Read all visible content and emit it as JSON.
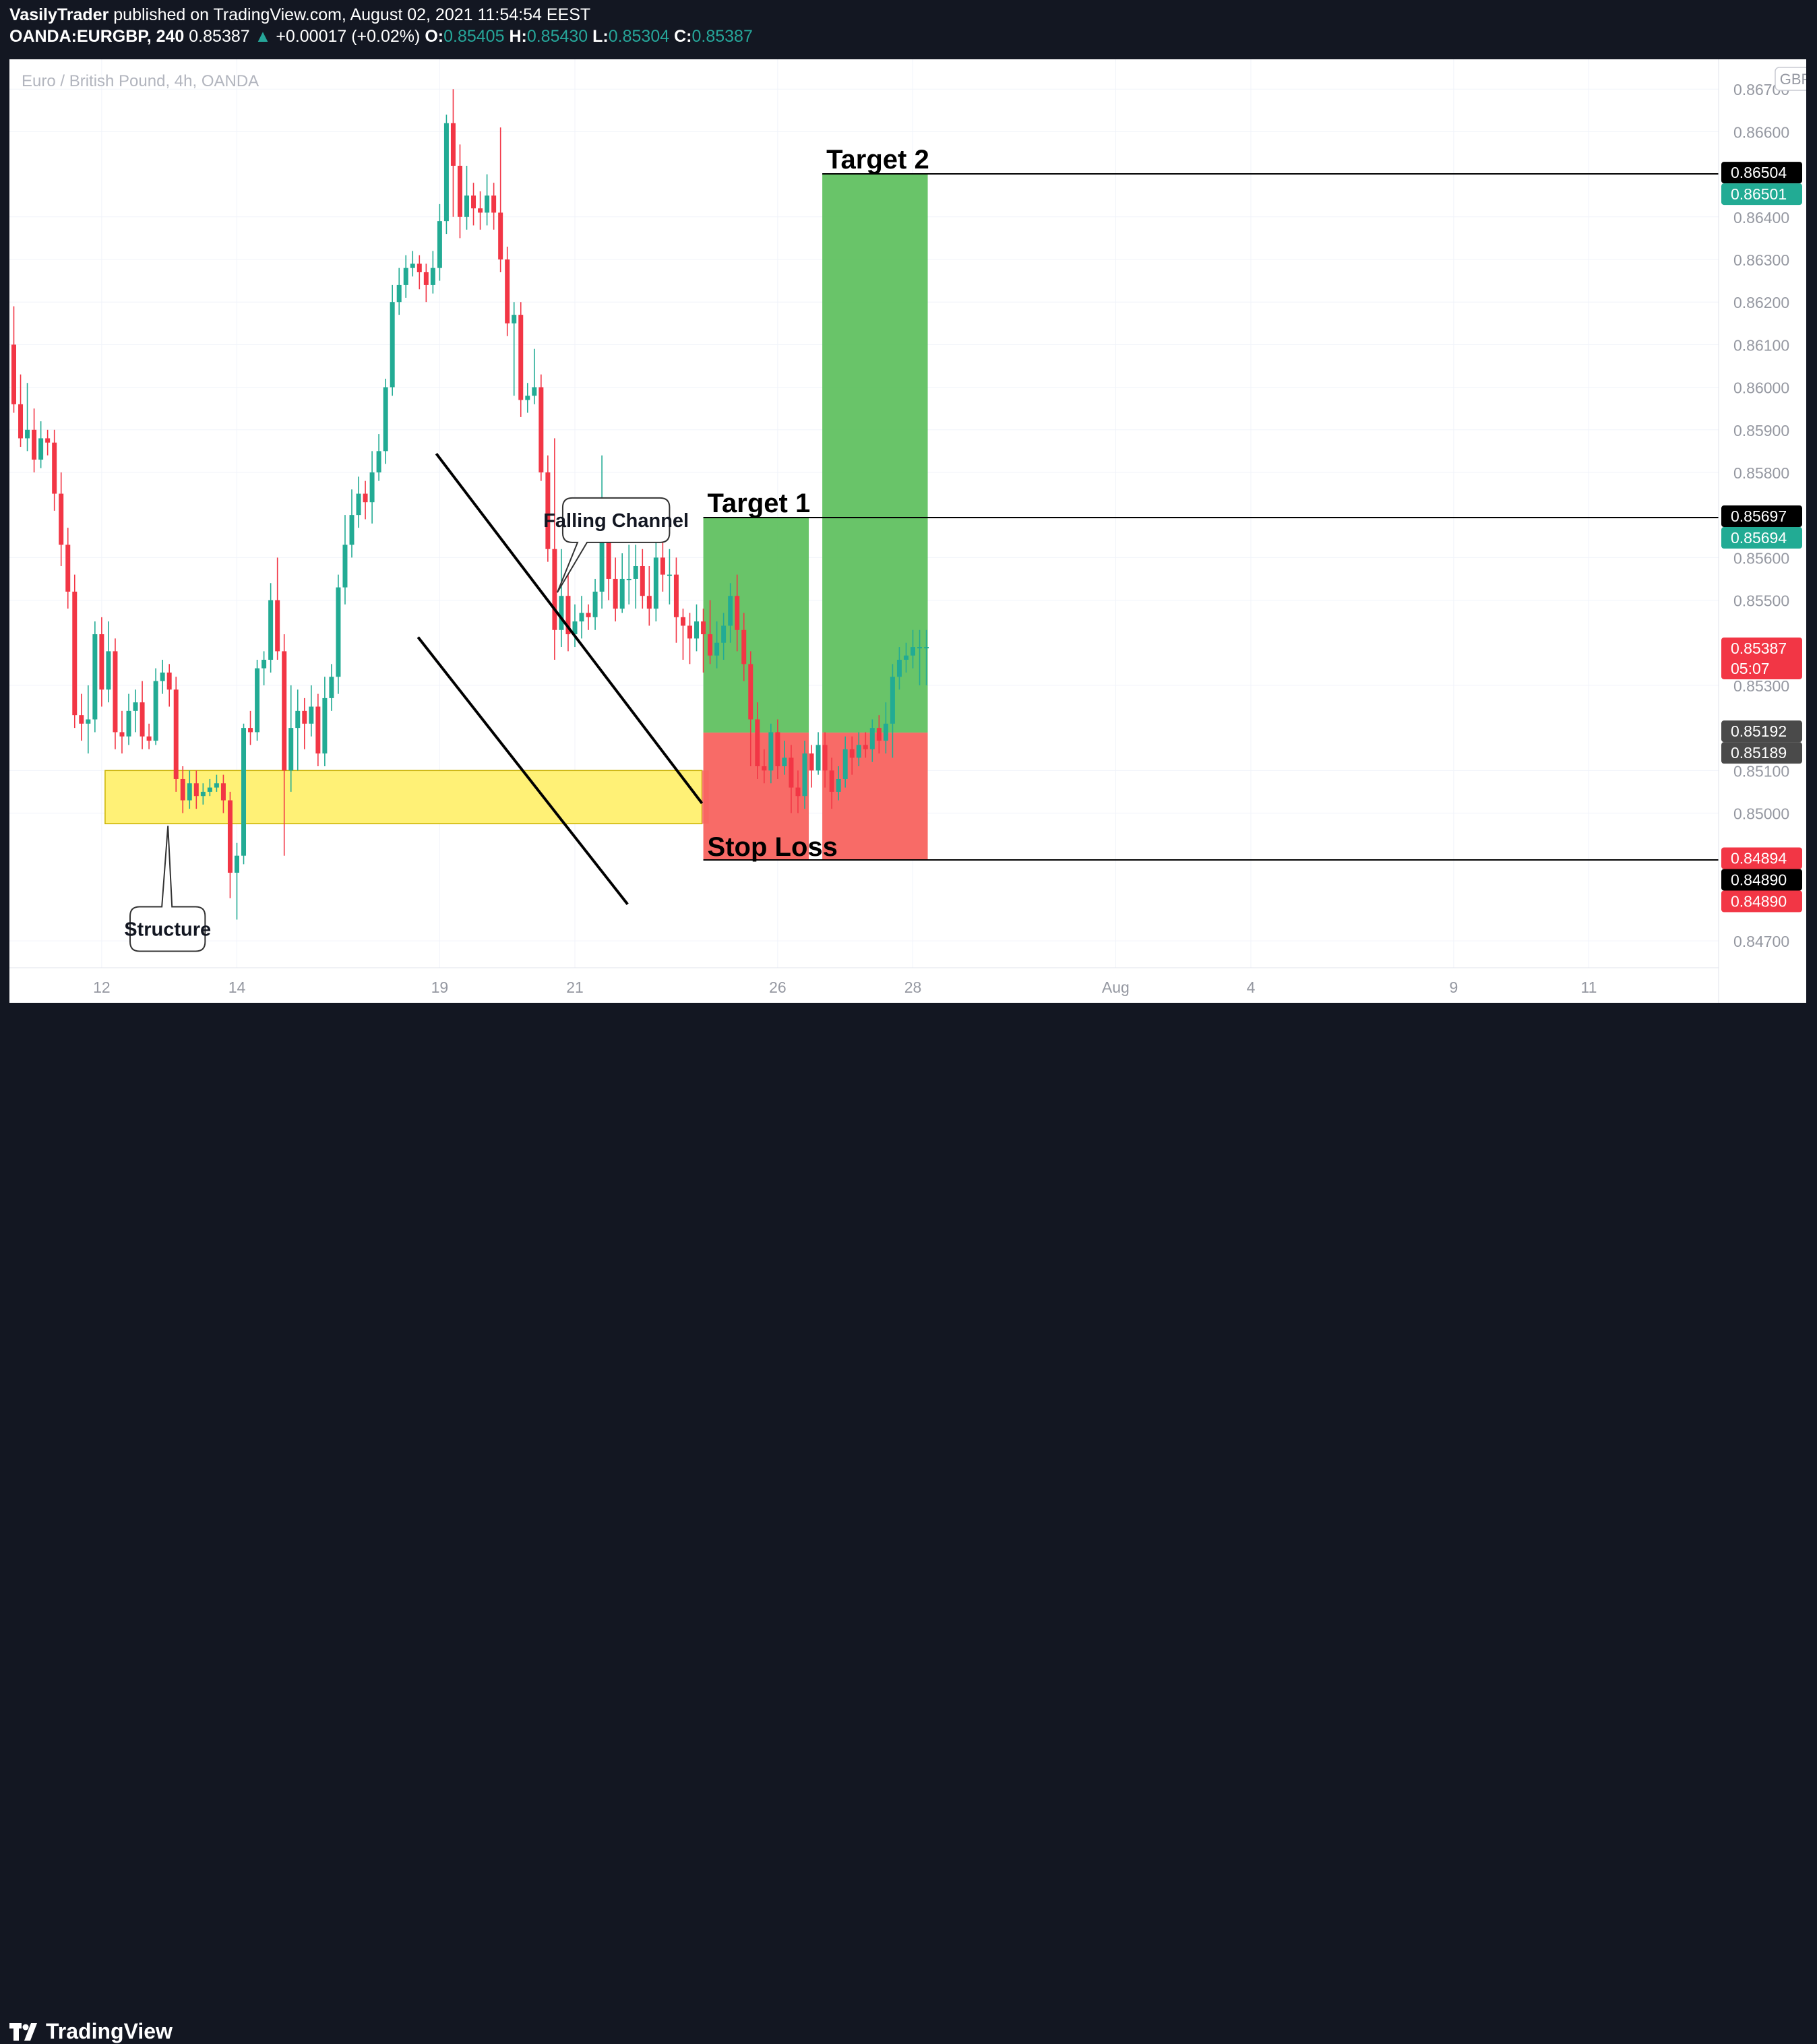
{
  "header": {
    "author": "VasilyTrader",
    "published_text": "published on TradingView.com, August 02, 2021 11:54:54 EEST",
    "symbol": "OANDA:EURGBP, 240",
    "last": "0.85387",
    "change_arrow": "▲",
    "change": "+0.00017 (+0.02%)",
    "o_label": "O:",
    "o_value": "0.85405",
    "h_label": "H:",
    "h_value": "0.85430",
    "l_label": "L:",
    "l_value": "0.85304",
    "c_label": "C:",
    "c_value": "0.85387"
  },
  "chart_title": "Euro / British Pound, 4h, OANDA",
  "currency_badge": "GBP",
  "footer": {
    "brand": "TradingView",
    "logo_icon": "tradingview-logo-icon"
  },
  "colors": {
    "up": "#22ab94",
    "down": "#f23645",
    "target_zone": "#5cbf5c",
    "stop_zone": "#f8635f",
    "structure_zone": "#fff176",
    "background": "#131722",
    "chart_bg": "#ffffff"
  },
  "annotations": {
    "structure": "Structure",
    "falling_channel": "Falling Channel",
    "target1": "Target 1",
    "target2": "Target 2",
    "stop_loss": "Stop Loss"
  },
  "price_tags": [
    {
      "text": "0.86504",
      "price": 0.86504,
      "color": "#000000"
    },
    {
      "text": "0.86501",
      "price": 0.86501,
      "color": "#22ab94"
    },
    {
      "text": "0.85697",
      "price": 0.85697,
      "color": "#000000"
    },
    {
      "text": "0.85694",
      "price": 0.85694,
      "color": "#22ab94"
    },
    {
      "text": "0.85387",
      "text2": "05:07",
      "price": 0.85387,
      "color": "#f23645"
    },
    {
      "text": "0.85192",
      "price": 0.85192,
      "color": "#4a4a4a"
    },
    {
      "text": "0.85189",
      "price": 0.85189,
      "color": "#4a4a4a"
    },
    {
      "text": "0.84894",
      "price": 0.84894,
      "color": "#f23645"
    },
    {
      "text": "0.84890",
      "price": 0.8489,
      "color": "#000000"
    },
    {
      "text": "0.84890",
      "price": 0.8489,
      "color": "#f23645"
    }
  ],
  "chart_data": {
    "type": "candlestick",
    "title": "Euro / British Pound, 4h, OANDA",
    "y_range": [
      0.8464,
      0.8677
    ],
    "y_ticks": [
      "0.86700",
      "0.86600",
      "0.86400",
      "0.86300",
      "0.86200",
      "0.86100",
      "0.86000",
      "0.85900",
      "0.85800",
      "0.85600",
      "0.85500",
      "0.85300",
      "0.85100",
      "0.85000",
      "0.84700"
    ],
    "x_ticks": [
      {
        "label": "12",
        "bar": 13
      },
      {
        "label": "14",
        "bar": 33
      },
      {
        "label": "19",
        "bar": 63
      },
      {
        "label": "21",
        "bar": 83
      },
      {
        "label": "26",
        "bar": 113
      },
      {
        "label": "28",
        "bar": 133
      },
      {
        "label": "Aug",
        "bar": 163
      },
      {
        "label": "4",
        "bar": 183
      },
      {
        "label": "9",
        "bar": 213
      },
      {
        "label": "11",
        "bar": 233
      }
    ],
    "candles": [
      [
        0.861,
        0.8596,
        0.8619,
        0.8594
      ],
      [
        0.8596,
        0.8588,
        0.8603,
        0.8586
      ],
      [
        0.8588,
        0.859,
        0.8601,
        0.8585
      ],
      [
        0.859,
        0.8583,
        0.8595,
        0.858
      ],
      [
        0.8583,
        0.8588,
        0.8592,
        0.8581
      ],
      [
        0.8588,
        0.8587,
        0.859,
        0.8584
      ],
      [
        0.8587,
        0.8575,
        0.859,
        0.8571
      ],
      [
        0.8575,
        0.8563,
        0.858,
        0.8558
      ],
      [
        0.8563,
        0.8552,
        0.8567,
        0.8548
      ],
      [
        0.8552,
        0.8523,
        0.8556,
        0.852
      ],
      [
        0.8523,
        0.8521,
        0.8528,
        0.8517
      ],
      [
        0.8521,
        0.8522,
        0.853,
        0.8514
      ],
      [
        0.8522,
        0.8542,
        0.8545,
        0.8519
      ],
      [
        0.8542,
        0.8529,
        0.8546,
        0.8525
      ],
      [
        0.8529,
        0.8538,
        0.8545,
        0.8526
      ],
      [
        0.8538,
        0.8519,
        0.8541,
        0.8515
      ],
      [
        0.8519,
        0.8518,
        0.8524,
        0.8514
      ],
      [
        0.8518,
        0.8524,
        0.8528,
        0.8516
      ],
      [
        0.8524,
        0.8526,
        0.8529,
        0.8519
      ],
      [
        0.8526,
        0.8518,
        0.8531,
        0.8515
      ],
      [
        0.8518,
        0.8517,
        0.8521,
        0.8515
      ],
      [
        0.8517,
        0.8531,
        0.8534,
        0.8516
      ],
      [
        0.8531,
        0.8533,
        0.8536,
        0.8528
      ],
      [
        0.8533,
        0.8529,
        0.8535,
        0.8525
      ],
      [
        0.8529,
        0.8508,
        0.8532,
        0.8505
      ],
      [
        0.8508,
        0.8503,
        0.8511,
        0.85
      ],
      [
        0.8503,
        0.8507,
        0.851,
        0.8501
      ],
      [
        0.8507,
        0.8504,
        0.851,
        0.8501
      ],
      [
        0.8504,
        0.8505,
        0.8507,
        0.8502
      ],
      [
        0.8505,
        0.8506,
        0.8508,
        0.8504
      ],
      [
        0.8506,
        0.8507,
        0.8509,
        0.8505
      ],
      [
        0.8507,
        0.8503,
        0.8509,
        0.85
      ],
      [
        0.8503,
        0.8486,
        0.8505,
        0.848
      ],
      [
        0.8486,
        0.849,
        0.8493,
        0.8475
      ],
      [
        0.849,
        0.852,
        0.8521,
        0.8488
      ],
      [
        0.852,
        0.8519,
        0.8524,
        0.8516
      ],
      [
        0.8519,
        0.8534,
        0.8536,
        0.8517
      ],
      [
        0.8534,
        0.8536,
        0.8538,
        0.853
      ],
      [
        0.8536,
        0.855,
        0.8554,
        0.8533
      ],
      [
        0.855,
        0.8538,
        0.856,
        0.8536
      ],
      [
        0.8538,
        0.851,
        0.8542,
        0.849
      ],
      [
        0.851,
        0.852,
        0.853,
        0.8505
      ],
      [
        0.852,
        0.8524,
        0.8529,
        0.851
      ],
      [
        0.8524,
        0.8521,
        0.8527,
        0.8515
      ],
      [
        0.8521,
        0.8525,
        0.853,
        0.8518
      ],
      [
        0.8525,
        0.8514,
        0.8528,
        0.8511
      ],
      [
        0.8514,
        0.8527,
        0.8532,
        0.8511
      ],
      [
        0.8527,
        0.8532,
        0.8535,
        0.8524
      ],
      [
        0.8532,
        0.8553,
        0.8556,
        0.8528
      ],
      [
        0.8553,
        0.8563,
        0.857,
        0.8549
      ],
      [
        0.8563,
        0.857,
        0.8576,
        0.856
      ],
      [
        0.857,
        0.8575,
        0.8579,
        0.8567
      ],
      [
        0.8575,
        0.8573,
        0.8578,
        0.8569
      ],
      [
        0.8573,
        0.858,
        0.8585,
        0.8568
      ],
      [
        0.858,
        0.8585,
        0.8589,
        0.8578
      ],
      [
        0.8585,
        0.86,
        0.8602,
        0.8582
      ],
      [
        0.86,
        0.862,
        0.8624,
        0.8598
      ],
      [
        0.862,
        0.8624,
        0.8628,
        0.8617
      ],
      [
        0.8624,
        0.8628,
        0.8631,
        0.8621
      ],
      [
        0.8628,
        0.8629,
        0.8632,
        0.8626
      ],
      [
        0.8629,
        0.8627,
        0.8631,
        0.8623
      ],
      [
        0.8627,
        0.8624,
        0.8629,
        0.862
      ],
      [
        0.8624,
        0.8628,
        0.8632,
        0.8622
      ],
      [
        0.8628,
        0.8639,
        0.8643,
        0.8625
      ],
      [
        0.8639,
        0.8662,
        0.8664,
        0.8636
      ],
      [
        0.8662,
        0.8652,
        0.867,
        0.864
      ],
      [
        0.8652,
        0.864,
        0.8657,
        0.8635
      ],
      [
        0.864,
        0.8645,
        0.8652,
        0.8637
      ],
      [
        0.8645,
        0.8642,
        0.8648,
        0.8638
      ],
      [
        0.8642,
        0.8641,
        0.8646,
        0.8637
      ],
      [
        0.8641,
        0.8645,
        0.865,
        0.8638
      ],
      [
        0.8645,
        0.8641,
        0.8648,
        0.8637
      ],
      [
        0.8641,
        0.863,
        0.8661,
        0.8627
      ],
      [
        0.863,
        0.8615,
        0.8633,
        0.8612
      ],
      [
        0.8615,
        0.8617,
        0.862,
        0.8598
      ],
      [
        0.8617,
        0.8597,
        0.862,
        0.8593
      ],
      [
        0.8597,
        0.8598,
        0.8601,
        0.8594
      ],
      [
        0.8598,
        0.86,
        0.8609,
        0.8596
      ],
      [
        0.86,
        0.858,
        0.8603,
        0.8578
      ],
      [
        0.858,
        0.8562,
        0.8584,
        0.8559
      ],
      [
        0.8562,
        0.8543,
        0.8588,
        0.8536
      ],
      [
        0.8543,
        0.8551,
        0.8562,
        0.8539
      ],
      [
        0.8551,
        0.8542,
        0.8557,
        0.8538
      ],
      [
        0.8542,
        0.8545,
        0.8549,
        0.8539
      ],
      [
        0.8545,
        0.8547,
        0.8551,
        0.8541
      ],
      [
        0.8547,
        0.8546,
        0.8549,
        0.8543
      ],
      [
        0.8546,
        0.8552,
        0.8555,
        0.8543
      ],
      [
        0.8552,
        0.8571,
        0.8584,
        0.8548
      ],
      [
        0.8571,
        0.8555,
        0.8574,
        0.855
      ],
      [
        0.8555,
        0.8548,
        0.856,
        0.8545
      ],
      [
        0.8548,
        0.8555,
        0.8561,
        0.8547
      ],
      [
        0.8555,
        0.8555,
        0.8563,
        0.8549
      ],
      [
        0.8555,
        0.8558,
        0.8563,
        0.8548
      ],
      [
        0.8558,
        0.8551,
        0.8562,
        0.8548
      ],
      [
        0.8551,
        0.8548,
        0.8558,
        0.8544
      ],
      [
        0.8548,
        0.856,
        0.857,
        0.8545
      ],
      [
        0.856,
        0.8556,
        0.8564,
        0.8552
      ],
      [
        0.8556,
        0.8556,
        0.8562,
        0.8549
      ],
      [
        0.8556,
        0.8546,
        0.856,
        0.854
      ],
      [
        0.8546,
        0.8544,
        0.8548,
        0.8536
      ],
      [
        0.8544,
        0.8541,
        0.8547,
        0.8535
      ],
      [
        0.8541,
        0.8545,
        0.8549,
        0.8538
      ],
      [
        0.8545,
        0.8542,
        0.8548,
        0.8533
      ],
      [
        0.8542,
        0.8537,
        0.855,
        0.8535
      ],
      [
        0.8537,
        0.854,
        0.8545,
        0.8534
      ],
      [
        0.854,
        0.8544,
        0.8547,
        0.8536
      ],
      [
        0.8544,
        0.8551,
        0.8554,
        0.854
      ],
      [
        0.8551,
        0.8543,
        0.8556,
        0.8538
      ],
      [
        0.8543,
        0.8535,
        0.8547,
        0.8531
      ],
      [
        0.8535,
        0.8522,
        0.8538,
        0.8511
      ],
      [
        0.8522,
        0.8511,
        0.8526,
        0.8508
      ],
      [
        0.8511,
        0.851,
        0.8515,
        0.8507
      ],
      [
        0.851,
        0.8519,
        0.8521,
        0.8507
      ],
      [
        0.8519,
        0.8511,
        0.8522,
        0.8508
      ],
      [
        0.8511,
        0.8513,
        0.8517,
        0.8509
      ],
      [
        0.8513,
        0.8506,
        0.8516,
        0.85
      ],
      [
        0.8506,
        0.8504,
        0.851,
        0.85
      ],
      [
        0.8504,
        0.8514,
        0.8517,
        0.8501
      ],
      [
        0.8514,
        0.851,
        0.8516,
        0.8506
      ],
      [
        0.851,
        0.8516,
        0.8519,
        0.8509
      ],
      [
        0.8516,
        0.851,
        0.8519,
        0.8506
      ],
      [
        0.851,
        0.8505,
        0.8513,
        0.8501
      ],
      [
        0.8505,
        0.8508,
        0.8511,
        0.8503
      ],
      [
        0.8508,
        0.8515,
        0.8518,
        0.8506
      ],
      [
        0.8515,
        0.8513,
        0.8518,
        0.8509
      ],
      [
        0.8513,
        0.8516,
        0.8519,
        0.8511
      ],
      [
        0.8516,
        0.8515,
        0.8519,
        0.8513
      ],
      [
        0.8515,
        0.852,
        0.8522,
        0.8512
      ],
      [
        0.852,
        0.8517,
        0.8523,
        0.8514
      ],
      [
        0.8517,
        0.8521,
        0.8526,
        0.8514
      ],
      [
        0.8521,
        0.8532,
        0.8535,
        0.8513
      ],
      [
        0.8532,
        0.8536,
        0.8539,
        0.8529
      ],
      [
        0.8536,
        0.8537,
        0.854,
        0.8533
      ],
      [
        0.8537,
        0.8539,
        0.8543,
        0.8534
      ],
      [
        0.8539,
        0.8539,
        0.8543,
        0.853
      ],
      [
        0.8539,
        0.8539,
        0.8543,
        0.853
      ]
    ]
  }
}
